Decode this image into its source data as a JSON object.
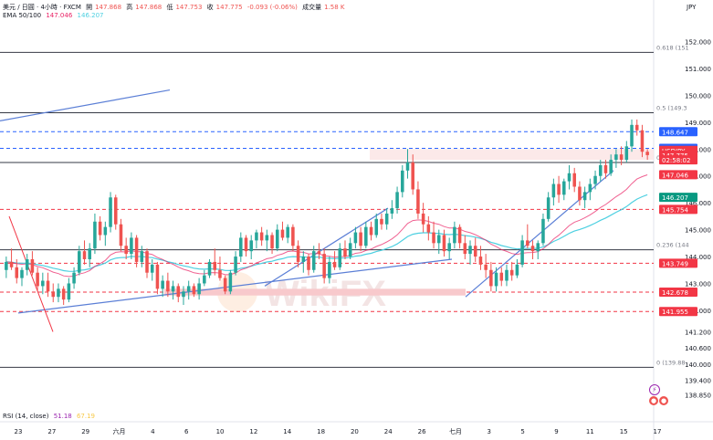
{
  "header": {
    "symbol": "美元 / 日圓 · 4小時 · FXCM",
    "open_label": "開",
    "open_value": "147.868",
    "high_label": "高",
    "high_value": "147.868",
    "low_label": "低",
    "low_value": "147.753",
    "close_label": "收",
    "close_value": "147.775",
    "change": "-0.093 (-0.06%)",
    "volume_label": "成交量",
    "volume_value": "1.58 K",
    "ema_label": "EMA 50/100",
    "ema50_value": "147.046",
    "ema100_value": "146.207"
  },
  "currency": "JPY",
  "rsi": {
    "label": "RSI (14, close)",
    "value": "51.18",
    "ma_value": "67.19"
  },
  "watermark": "WikiFX",
  "colors": {
    "up": "#26a69a",
    "down": "#ef5350",
    "ema50": "#e91e63",
    "ema100": "#4dd0e1",
    "trendline": "#5b7fd6",
    "zone": "#f8c9cc",
    "blue_tag": "#2962ff",
    "red_tag": "#f23645",
    "teal_tag": "#089981"
  },
  "chart_data": {
    "type": "candlestick",
    "symbol": "USDJPY",
    "timeframe": "4h",
    "ylim": [
      138.6,
      152.8
    ],
    "price_ticks": [
      "152.000",
      "151.000",
      "150.000",
      "149.000",
      "148.000",
      "147.000",
      "146.000",
      "145.000",
      "144.000",
      "143.000",
      "142.000",
      "141.200",
      "140.600",
      "140.000",
      "139.400",
      "138.850"
    ],
    "price_tick_values": [
      152.0,
      151.0,
      150.0,
      149.0,
      148.0,
      147.0,
      146.0,
      145.0,
      144.0,
      143.0,
      142.0,
      141.2,
      140.6,
      140.0,
      139.4,
      138.85
    ],
    "x_tick_labels": [
      "23",
      "27",
      "29",
      "六月",
      "4",
      "6",
      "10",
      "12",
      "14",
      "18",
      "20",
      "24",
      "26",
      "七月",
      "3",
      "5",
      "9",
      "11",
      "15",
      "17"
    ],
    "fibonacci": [
      {
        "label": "0.618 (151",
        "value": 151.6
      },
      {
        "label": "0.5 (149.3",
        "value": 149.35
      },
      {
        "label": "0.382 (14",
        "value": 147.5
      },
      {
        "label": "0.236 (144",
        "value": 144.25
      },
      {
        "label": "0 (139.88",
        "value": 139.88
      }
    ],
    "price_tags": [
      {
        "label": "148.647",
        "value": 148.647,
        "color": "#2962ff"
      },
      {
        "label": "148.026",
        "value": 148.026,
        "color": "#2962ff"
      },
      {
        "label": "USDJPY",
        "value": 147.95,
        "color": "#f23645"
      },
      {
        "label": "147.775",
        "value": 147.775,
        "color": "#f23645"
      },
      {
        "label": "02:58:02",
        "value": 147.6,
        "color": "#f23645"
      },
      {
        "label": "147.046",
        "value": 147.046,
        "color": "#f23645"
      },
      {
        "label": "146.207",
        "value": 146.207,
        "color": "#089981"
      },
      {
        "label": "145.754",
        "value": 145.754,
        "color": "#f23645"
      },
      {
        "label": "143.749",
        "value": 143.749,
        "color": "#f23645"
      },
      {
        "label": "142.678",
        "value": 142.678,
        "color": "#f23645"
      },
      {
        "label": "141.955",
        "value": 141.955,
        "color": "#f23645"
      }
    ],
    "candles": [
      [
        143.5,
        144.0,
        143.2,
        143.8
      ],
      [
        143.8,
        144.3,
        143.5,
        143.6
      ],
      [
        143.6,
        143.9,
        143.0,
        143.2
      ],
      [
        143.2,
        143.6,
        142.9,
        143.5
      ],
      [
        143.5,
        144.1,
        143.3,
        143.9
      ],
      [
        143.9,
        144.2,
        143.3,
        143.4
      ],
      [
        143.4,
        143.6,
        142.7,
        142.9
      ],
      [
        142.9,
        143.4,
        142.6,
        143.1
      ],
      [
        143.1,
        143.4,
        142.5,
        142.7
      ],
      [
        142.7,
        143.0,
        142.3,
        142.5
      ],
      [
        142.5,
        143.0,
        142.3,
        142.8
      ],
      [
        142.8,
        142.9,
        142.2,
        142.4
      ],
      [
        142.4,
        143.2,
        142.3,
        143.0
      ],
      [
        143.0,
        143.6,
        142.8,
        143.4
      ],
      [
        143.4,
        144.4,
        143.3,
        144.2
      ],
      [
        144.2,
        144.6,
        143.7,
        143.9
      ],
      [
        143.9,
        144.5,
        143.6,
        144.3
      ],
      [
        144.3,
        145.6,
        144.1,
        145.3
      ],
      [
        145.3,
        145.5,
        144.6,
        144.8
      ],
      [
        144.8,
        145.3,
        144.4,
        145.1
      ],
      [
        145.1,
        146.4,
        144.9,
        146.2
      ],
      [
        146.2,
        146.3,
        145.0,
        145.2
      ],
      [
        145.2,
        145.4,
        144.2,
        144.4
      ],
      [
        144.4,
        144.7,
        143.9,
        144.1
      ],
      [
        144.1,
        144.9,
        143.9,
        144.7
      ],
      [
        144.7,
        144.8,
        143.6,
        143.8
      ],
      [
        143.8,
        144.4,
        143.6,
        144.2
      ],
      [
        144.2,
        144.3,
        143.2,
        143.4
      ],
      [
        143.4,
        143.9,
        143.1,
        143.7
      ],
      [
        143.7,
        143.8,
        142.6,
        142.8
      ],
      [
        142.8,
        143.3,
        142.5,
        143.1
      ],
      [
        143.1,
        143.4,
        142.5,
        142.7
      ],
      [
        142.7,
        143.1,
        142.4,
        142.9
      ],
      [
        142.9,
        143.0,
        142.3,
        142.5
      ],
      [
        142.5,
        142.9,
        142.2,
        142.7
      ],
      [
        142.7,
        143.1,
        142.4,
        142.9
      ],
      [
        142.9,
        143.0,
        142.5,
        142.6
      ],
      [
        142.6,
        143.2,
        142.4,
        143.0
      ],
      [
        143.0,
        143.5,
        142.9,
        143.3
      ],
      [
        143.3,
        143.9,
        143.2,
        143.8
      ],
      [
        143.8,
        144.3,
        143.3,
        143.5
      ],
      [
        143.5,
        144.0,
        143.1,
        143.2
      ],
      [
        143.2,
        143.3,
        142.6,
        142.7
      ],
      [
        142.7,
        143.5,
        142.6,
        143.4
      ],
      [
        143.4,
        144.2,
        143.3,
        144.0
      ],
      [
        144.0,
        144.9,
        143.8,
        144.7
      ],
      [
        144.7,
        144.8,
        144.0,
        144.2
      ],
      [
        144.2,
        144.8,
        143.9,
        144.6
      ],
      [
        144.6,
        145.0,
        144.3,
        144.9
      ],
      [
        144.9,
        145.1,
        144.4,
        144.6
      ],
      [
        144.6,
        145.0,
        144.2,
        144.8
      ],
      [
        144.8,
        144.9,
        144.1,
        144.3
      ],
      [
        144.3,
        145.2,
        144.2,
        145.0
      ],
      [
        145.0,
        145.3,
        144.6,
        144.7
      ],
      [
        144.7,
        145.2,
        144.5,
        145.1
      ],
      [
        145.1,
        145.2,
        144.2,
        144.4
      ],
      [
        144.4,
        144.6,
        143.6,
        143.8
      ],
      [
        143.8,
        144.2,
        143.4,
        144.0
      ],
      [
        144.0,
        144.1,
        143.3,
        143.5
      ],
      [
        143.5,
        144.4,
        143.4,
        144.2
      ],
      [
        144.2,
        144.5,
        143.9,
        144.1
      ],
      [
        144.1,
        144.3,
        143.0,
        143.2
      ],
      [
        143.2,
        144.0,
        143.0,
        143.8
      ],
      [
        143.8,
        144.2,
        143.5,
        143.6
      ],
      [
        143.6,
        144.5,
        143.5,
        144.3
      ],
      [
        144.3,
        144.6,
        143.9,
        144.0
      ],
      [
        144.0,
        144.7,
        143.9,
        144.5
      ],
      [
        144.5,
        145.1,
        144.3,
        144.9
      ],
      [
        144.9,
        145.1,
        144.2,
        144.4
      ],
      [
        144.4,
        145.3,
        144.3,
        145.1
      ],
      [
        145.1,
        145.3,
        144.6,
        144.8
      ],
      [
        144.8,
        145.6,
        144.7,
        145.4
      ],
      [
        145.4,
        145.6,
        145.0,
        145.2
      ],
      [
        145.2,
        145.8,
        145.0,
        145.6
      ],
      [
        145.6,
        146.1,
        145.4,
        145.8
      ],
      [
        145.8,
        146.6,
        145.6,
        146.4
      ],
      [
        146.4,
        147.4,
        146.2,
        147.2
      ],
      [
        147.2,
        148.0,
        146.9,
        147.5
      ],
      [
        147.5,
        147.8,
        146.3,
        146.5
      ],
      [
        146.5,
        146.8,
        145.4,
        145.6
      ],
      [
        145.6,
        146.0,
        144.9,
        145.2
      ],
      [
        145.2,
        145.5,
        144.6,
        144.9
      ],
      [
        144.9,
        145.3,
        144.3,
        144.5
      ],
      [
        144.5,
        145.0,
        144.1,
        144.8
      ],
      [
        144.8,
        145.0,
        144.0,
        144.2
      ],
      [
        144.2,
        144.7,
        143.9,
        144.5
      ],
      [
        144.5,
        145.3,
        144.3,
        145.1
      ],
      [
        145.1,
        145.2,
        144.3,
        144.5
      ],
      [
        144.5,
        144.8,
        143.9,
        144.1
      ],
      [
        144.1,
        144.6,
        143.7,
        144.4
      ],
      [
        144.4,
        144.7,
        143.8,
        144.0
      ],
      [
        144.0,
        144.4,
        143.5,
        143.7
      ],
      [
        143.7,
        144.1,
        143.2,
        143.5
      ],
      [
        143.5,
        143.8,
        142.7,
        142.9
      ],
      [
        142.9,
        143.6,
        142.7,
        143.4
      ],
      [
        143.4,
        143.6,
        142.9,
        143.1
      ],
      [
        143.1,
        143.7,
        142.9,
        143.5
      ],
      [
        143.5,
        143.8,
        143.1,
        143.3
      ],
      [
        143.3,
        143.9,
        143.2,
        143.7
      ],
      [
        143.7,
        144.8,
        143.6,
        144.6
      ],
      [
        144.6,
        145.2,
        144.3,
        144.4
      ],
      [
        144.4,
        144.6,
        143.9,
        144.2
      ],
      [
        144.2,
        144.6,
        143.9,
        144.5
      ],
      [
        144.5,
        145.6,
        144.4,
        145.4
      ],
      [
        145.4,
        146.4,
        145.3,
        146.2
      ],
      [
        146.2,
        146.9,
        145.9,
        146.7
      ],
      [
        146.7,
        147.0,
        146.0,
        146.3
      ],
      [
        146.3,
        146.9,
        146.1,
        146.8
      ],
      [
        146.8,
        147.4,
        146.5,
        147.1
      ],
      [
        147.1,
        147.3,
        146.4,
        146.6
      ],
      [
        146.6,
        146.8,
        145.9,
        146.1
      ],
      [
        146.1,
        146.6,
        145.8,
        146.4
      ],
      [
        146.4,
        146.9,
        146.1,
        146.7
      ],
      [
        146.7,
        147.2,
        146.5,
        147.0
      ],
      [
        147.0,
        147.6,
        146.8,
        147.4
      ],
      [
        147.4,
        147.6,
        146.9,
        147.1
      ],
      [
        147.1,
        147.8,
        147.0,
        147.6
      ],
      [
        147.6,
        148.0,
        147.3,
        147.8
      ],
      [
        147.8,
        148.1,
        147.4,
        147.6
      ],
      [
        147.6,
        148.3,
        147.5,
        148.1
      ],
      [
        148.1,
        149.1,
        147.9,
        148.9
      ],
      [
        148.9,
        149.1,
        148.5,
        148.7
      ],
      [
        148.7,
        148.9,
        147.7,
        147.9
      ],
      [
        147.9,
        148.0,
        147.6,
        147.775
      ]
    ]
  }
}
